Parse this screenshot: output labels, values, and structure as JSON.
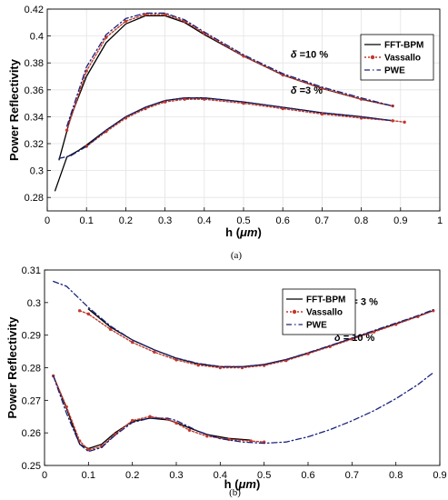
{
  "figure": {
    "styles": {
      "FFT-BPM": {
        "color": "#000000",
        "dash": "",
        "width": 1.3,
        "markers": false
      },
      "Vassallo": {
        "color": "#c0392b",
        "dash": "2,2",
        "width": 1.4,
        "markers": true
      },
      "PWE": {
        "color": "#1a237e",
        "dash": "6,3,1.5,3",
        "width": 1.3,
        "markers": false
      }
    }
  },
  "chart_data": [
    {
      "type": "line",
      "caption": "(a)",
      "xlabel_prefix": "h (",
      "xlabel_unit": "μm",
      "xlabel_suffix": ")",
      "ylabel": "Power Reflectivity",
      "xlim": [
        0,
        1
      ],
      "ylim": [
        0.27,
        0.42
      ],
      "xticks": [
        "0",
        "0.1",
        "0.2",
        "0.3",
        "0.4",
        "0.5",
        "0.6",
        "0.7",
        "0.8",
        "0.9",
        "1"
      ],
      "yticks": [
        "0.28",
        "0.3",
        "0.32",
        "0.34",
        "0.36",
        "0.38",
        "0.4",
        "0.42"
      ],
      "grid": true,
      "legend_position": "right",
      "legend": [
        "FFT-BPM",
        "Vassallo",
        "PWE"
      ],
      "annotations": [
        {
          "symbol": "δ",
          "text": " =10 %",
          "x": 0.62,
          "y": 0.384
        },
        {
          "symbol": "δ",
          "text": " =3 %",
          "x": 0.62,
          "y": 0.357
        }
      ],
      "series": [
        {
          "name": "FFT-BPM",
          "group": "δ=10%",
          "x": [
            0.03,
            0.06,
            0.1,
            0.15,
            0.2,
            0.25,
            0.3,
            0.35,
            0.4,
            0.5,
            0.6,
            0.7,
            0.8,
            0.88
          ],
          "y": [
            0.308,
            0.34,
            0.37,
            0.395,
            0.409,
            0.415,
            0.415,
            0.41,
            0.401,
            0.385,
            0.371,
            0.361,
            0.353,
            0.348
          ]
        },
        {
          "name": "Vassallo",
          "group": "δ=10%",
          "x": [
            0.05,
            0.1,
            0.15,
            0.2,
            0.25,
            0.3,
            0.35,
            0.4,
            0.5,
            0.6,
            0.7,
            0.8,
            0.88
          ],
          "y": [
            0.33,
            0.374,
            0.399,
            0.411,
            0.416,
            0.416,
            0.411,
            0.402,
            0.385,
            0.371,
            0.361,
            0.353,
            0.348
          ]
        },
        {
          "name": "PWE",
          "group": "δ=10%",
          "x": [
            0.05,
            0.1,
            0.15,
            0.2,
            0.25,
            0.3,
            0.35,
            0.4,
            0.5,
            0.6,
            0.7,
            0.8,
            0.88
          ],
          "y": [
            0.333,
            0.377,
            0.401,
            0.413,
            0.417,
            0.417,
            0.412,
            0.403,
            0.386,
            0.372,
            0.362,
            0.354,
            0.348
          ]
        },
        {
          "name": "FFT-BPM",
          "group": "δ=3%",
          "x": [
            0.02,
            0.05,
            0.08,
            0.1,
            0.15,
            0.2,
            0.25,
            0.3,
            0.35,
            0.4,
            0.5,
            0.6,
            0.7,
            0.8,
            0.88
          ],
          "y": [
            0.285,
            0.31,
            0.315,
            0.319,
            0.33,
            0.34,
            0.347,
            0.352,
            0.354,
            0.354,
            0.351,
            0.347,
            0.343,
            0.34,
            0.337
          ]
        },
        {
          "name": "Vassallo",
          "group": "δ=3%",
          "x": [
            0.1,
            0.15,
            0.2,
            0.25,
            0.3,
            0.35,
            0.4,
            0.5,
            0.6,
            0.7,
            0.8,
            0.88,
            0.91
          ],
          "y": [
            0.318,
            0.329,
            0.339,
            0.346,
            0.351,
            0.353,
            0.353,
            0.35,
            0.346,
            0.342,
            0.339,
            0.337,
            0.336
          ]
        },
        {
          "name": "PWE",
          "group": "δ=3%",
          "x": [
            0.03,
            0.06,
            0.1,
            0.15,
            0.2,
            0.25,
            0.3,
            0.35,
            0.4,
            0.5,
            0.6,
            0.7,
            0.8,
            0.88
          ],
          "y": [
            0.309,
            0.311,
            0.318,
            0.33,
            0.34,
            0.347,
            0.352,
            0.354,
            0.354,
            0.351,
            0.347,
            0.343,
            0.34,
            0.337
          ]
        }
      ]
    },
    {
      "type": "line",
      "caption": "(b)",
      "xlabel_prefix": "h (",
      "xlabel_unit": "μm",
      "xlabel_suffix": ")",
      "ylabel": "Power Reflectivity",
      "xlim": [
        0,
        0.9
      ],
      "ylim": [
        0.25,
        0.31
      ],
      "xticks": [
        "0",
        "0.1",
        "0.2",
        "0.3",
        "0.4",
        "0.5",
        "0.6",
        "0.7",
        "0.8",
        "0.9"
      ],
      "yticks": [
        "0.25",
        "0.26",
        "0.27",
        "0.28",
        "0.29",
        "0.3",
        "0.31"
      ],
      "grid": false,
      "legend_position": "top-center",
      "legend": [
        "FFT-BPM",
        "Vassallo",
        "PWE"
      ],
      "annotations": [
        {
          "symbol": "δ",
          "text": " = 3 %",
          "x": 0.68,
          "y": 0.2993
        },
        {
          "symbol": "δ",
          "text": " = 10 %",
          "x": 0.66,
          "y": 0.2882
        }
      ],
      "series": [
        {
          "name": "FFT-BPM",
          "group": "δ=3%",
          "x": [
            0.1,
            0.15,
            0.2,
            0.25,
            0.3,
            0.35,
            0.4,
            0.45,
            0.5,
            0.55,
            0.6,
            0.65,
            0.7,
            0.75,
            0.8,
            0.85,
            0.885
          ],
          "y": [
            0.298,
            0.2925,
            0.2885,
            0.2855,
            0.2829,
            0.2812,
            0.2803,
            0.2803,
            0.281,
            0.2825,
            0.2845,
            0.2867,
            0.289,
            0.2912,
            0.2935,
            0.2958,
            0.2975
          ]
        },
        {
          "name": "Vassallo",
          "group": "δ=3%",
          "x": [
            0.08,
            0.1,
            0.15,
            0.2,
            0.25,
            0.3,
            0.35,
            0.4,
            0.45,
            0.5,
            0.55,
            0.6,
            0.65,
            0.7,
            0.75,
            0.8,
            0.85,
            0.885
          ],
          "y": [
            0.2975,
            0.2965,
            0.2918,
            0.2878,
            0.2848,
            0.2824,
            0.2808,
            0.28,
            0.28,
            0.2807,
            0.2822,
            0.2843,
            0.2865,
            0.2888,
            0.291,
            0.2933,
            0.2957,
            0.2975
          ]
        },
        {
          "name": "PWE",
          "group": "δ=3%",
          "x": [
            0.02,
            0.05,
            0.1,
            0.15,
            0.2,
            0.25,
            0.3,
            0.35,
            0.4,
            0.45,
            0.5,
            0.55,
            0.6,
            0.65,
            0.7,
            0.75,
            0.8,
            0.85,
            0.885
          ],
          "y": [
            0.3065,
            0.305,
            0.2985,
            0.2928,
            0.2885,
            0.2855,
            0.283,
            0.2813,
            0.2804,
            0.2803,
            0.281,
            0.2825,
            0.2846,
            0.2868,
            0.2891,
            0.2914,
            0.2937,
            0.296,
            0.2978
          ]
        },
        {
          "name": "FFT-BPM",
          "group": "δ=10%",
          "x": [
            0.02,
            0.05,
            0.08,
            0.1,
            0.13,
            0.16,
            0.2,
            0.24,
            0.28,
            0.3,
            0.33,
            0.37,
            0.42,
            0.47
          ],
          "y": [
            0.2775,
            0.2675,
            0.2565,
            0.2552,
            0.2565,
            0.26,
            0.2635,
            0.2645,
            0.264,
            0.2632,
            0.2615,
            0.2595,
            0.2583,
            0.2578
          ]
        },
        {
          "name": "Vassallo",
          "group": "δ=10%",
          "x": [
            0.02,
            0.05,
            0.08,
            0.1,
            0.13,
            0.16,
            0.2,
            0.24,
            0.28,
            0.3,
            0.33,
            0.37,
            0.42,
            0.47,
            0.5
          ],
          "y": [
            0.2775,
            0.268,
            0.2575,
            0.2548,
            0.2558,
            0.2595,
            0.2638,
            0.265,
            0.2642,
            0.263,
            0.2608,
            0.259,
            0.258,
            0.2575,
            0.2572
          ]
        },
        {
          "name": "PWE",
          "group": "δ=10%",
          "x": [
            0.02,
            0.05,
            0.08,
            0.1,
            0.13,
            0.16,
            0.2,
            0.24,
            0.28,
            0.3,
            0.35,
            0.4,
            0.45,
            0.5,
            0.55,
            0.6,
            0.65,
            0.7,
            0.75,
            0.8,
            0.85,
            0.885
          ],
          "y": [
            0.2775,
            0.266,
            0.2565,
            0.2543,
            0.2555,
            0.2592,
            0.2632,
            0.2645,
            0.2645,
            0.2638,
            0.2605,
            0.2582,
            0.2572,
            0.2568,
            0.2572,
            0.2588,
            0.261,
            0.2637,
            0.2668,
            0.2705,
            0.2748,
            0.2785
          ]
        }
      ]
    }
  ]
}
